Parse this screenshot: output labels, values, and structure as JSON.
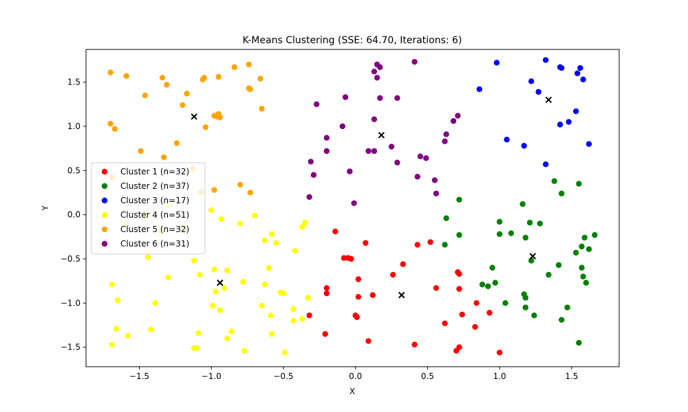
{
  "chart_data": {
    "type": "scatter",
    "title": "K-Means Clustering (SSE: 64.70, Iterations: 6)",
    "xlabel": "X",
    "ylabel": "Y",
    "xlim": [
      -1.87,
      1.83
    ],
    "ylim": [
      -1.72,
      1.87
    ],
    "xticks": [
      -1.5,
      -1.0,
      -0.5,
      0.0,
      0.5,
      1.0,
      1.5
    ],
    "yticks": [
      -1.5,
      -1.0,
      -0.5,
      0.0,
      0.5,
      1.0,
      1.5
    ],
    "tick_labels_x": [
      "−1.5",
      "−1.0",
      "−0.5",
      "0.0",
      "0.5",
      "1.0",
      "1.5"
    ],
    "tick_labels_y": [
      "−1.5",
      "−1.0",
      "−0.5",
      "0.0",
      "0.5",
      "1.0",
      "1.5"
    ],
    "grid": false,
    "legend_position": "center-left",
    "series": [
      {
        "name": "Cluster 1 (n=32)",
        "color": "#ff0000",
        "points": [
          [
            -0.14,
            -0.19
          ],
          [
            -0.08,
            -0.49
          ],
          [
            -0.05,
            -0.49
          ],
          [
            -0.03,
            -0.5
          ],
          [
            0.07,
            -0.32
          ],
          [
            0.0,
            -1.14
          ],
          [
            0.01,
            -1.16
          ],
          [
            0.02,
            -0.73
          ],
          [
            0.02,
            -0.93
          ],
          [
            0.12,
            -0.91
          ],
          [
            -0.2,
            -0.83
          ],
          [
            -0.2,
            -0.89
          ],
          [
            -0.21,
            -1.35
          ],
          [
            -0.32,
            -1.14
          ],
          [
            0.09,
            -1.43
          ],
          [
            0.26,
            -0.68
          ],
          [
            0.33,
            -0.56
          ],
          [
            0.43,
            -0.34
          ],
          [
            0.52,
            -0.31
          ],
          [
            0.41,
            -1.47
          ],
          [
            0.56,
            -0.83
          ],
          [
            0.62,
            -1.23
          ],
          [
            0.71,
            -0.65
          ],
          [
            0.72,
            -0.67
          ],
          [
            0.72,
            -0.84
          ],
          [
            0.74,
            -1.13
          ],
          [
            0.7,
            -1.54
          ],
          [
            0.72,
            -1.5
          ],
          [
            0.83,
            -1.27
          ],
          [
            0.84,
            -1.0
          ],
          [
            0.93,
            -1.11
          ],
          [
            1.0,
            -1.56
          ]
        ]
      },
      {
        "name": "Cluster 2 (n=37)",
        "color": "#008000",
        "points": [
          [
            0.63,
            -0.04
          ],
          [
            0.62,
            -0.34
          ],
          [
            0.72,
            0.17
          ],
          [
            0.72,
            -0.23
          ],
          [
            0.88,
            -0.79
          ],
          [
            0.92,
            -0.81
          ],
          [
            0.95,
            -0.6
          ],
          [
            0.97,
            -0.77
          ],
          [
            1.0,
            -0.08
          ],
          [
            1.0,
            -0.22
          ],
          [
            1.04,
            -1.0
          ],
          [
            1.08,
            -0.21
          ],
          [
            1.16,
            0.12
          ],
          [
            1.17,
            -0.9
          ],
          [
            1.18,
            -0.94
          ],
          [
            1.18,
            -0.26
          ],
          [
            1.18,
            -1.05
          ],
          [
            1.21,
            -0.09
          ],
          [
            1.22,
            -0.52
          ],
          [
            1.24,
            -1.14
          ],
          [
            1.28,
            -0.1
          ],
          [
            1.34,
            -0.68
          ],
          [
            1.38,
            0.38
          ],
          [
            1.41,
            -0.57
          ],
          [
            1.43,
            0.24
          ],
          [
            1.43,
            -1.19
          ],
          [
            1.47,
            -1.05
          ],
          [
            1.53,
            -0.43
          ],
          [
            1.55,
            0.35
          ],
          [
            1.57,
            -0.36
          ],
          [
            1.57,
            -0.6
          ],
          [
            1.58,
            -0.7
          ],
          [
            1.59,
            -0.26
          ],
          [
            1.6,
            -0.77
          ],
          [
            1.62,
            -0.39
          ],
          [
            1.66,
            -0.23
          ],
          [
            1.55,
            -1.45
          ]
        ]
      },
      {
        "name": "Cluster 3 (n=17)",
        "color": "#0000ff",
        "points": [
          [
            0.86,
            1.42
          ],
          [
            0.98,
            1.72
          ],
          [
            1.05,
            0.85
          ],
          [
            1.17,
            0.78
          ],
          [
            1.22,
            1.51
          ],
          [
            1.27,
            1.39
          ],
          [
            1.32,
            1.75
          ],
          [
            1.32,
            0.57
          ],
          [
            1.42,
            1.67
          ],
          [
            1.43,
            1.66
          ],
          [
            1.42,
            1.02
          ],
          [
            1.48,
            1.05
          ],
          [
            1.53,
            1.17
          ],
          [
            1.54,
            1.6
          ],
          [
            1.56,
            1.66
          ],
          [
            1.58,
            1.53
          ],
          [
            1.62,
            0.8
          ]
        ]
      },
      {
        "name": "Cluster 4 (n=51)",
        "color": "#ffff00",
        "points": [
          [
            -1.69,
            -0.79
          ],
          [
            -1.69,
            -1.47
          ],
          [
            -1.66,
            -1.29
          ],
          [
            -1.65,
            -0.97
          ],
          [
            -1.58,
            -1.37
          ],
          [
            -1.44,
            -0.48
          ],
          [
            -1.42,
            -1.3
          ],
          [
            -1.39,
            -1.0
          ],
          [
            -1.3,
            -0.71
          ],
          [
            -1.12,
            -0.52
          ],
          [
            -1.09,
            -1.34
          ],
          [
            -1.1,
            -1.51
          ],
          [
            -1.12,
            -1.51
          ],
          [
            -1.08,
            -0.68
          ],
          [
            -0.99,
            -1.03
          ],
          [
            -0.98,
            -0.62
          ],
          [
            -0.97,
            -0.87
          ],
          [
            -0.94,
            -1.08
          ],
          [
            -0.93,
            -0.05
          ],
          [
            -0.91,
            -0.83
          ],
          [
            -0.89,
            -0.63
          ],
          [
            -0.89,
            -1.4
          ],
          [
            -0.86,
            -1.32
          ],
          [
            -0.78,
            -0.76
          ],
          [
            -0.77,
            -1.54
          ],
          [
            -0.7,
            -0.01
          ],
          [
            -0.65,
            -1.03
          ],
          [
            -0.63,
            -0.29
          ],
          [
            -0.63,
            -0.79
          ],
          [
            -0.6,
            -0.6
          ],
          [
            -0.59,
            -1.14
          ],
          [
            -0.58,
            -0.22
          ],
          [
            -0.58,
            -1.35
          ],
          [
            -0.55,
            -0.32
          ],
          [
            -0.52,
            -0.88
          ],
          [
            -0.5,
            -0.89
          ],
          [
            -0.49,
            -1.56
          ],
          [
            -0.43,
            -1.07
          ],
          [
            -0.43,
            -1.2
          ],
          [
            -0.42,
            -0.41
          ],
          [
            -0.37,
            -0.14
          ],
          [
            -0.37,
            -1.18
          ],
          [
            -0.35,
            -0.09
          ],
          [
            -0.33,
            -0.94
          ],
          [
            -1.45,
            0.0
          ],
          [
            -1.6,
            -0.1
          ],
          [
            -1.3,
            0.1
          ],
          [
            -1.2,
            -0.15
          ],
          [
            -1.0,
            0.05
          ],
          [
            -0.8,
            -0.1
          ],
          [
            -1.35,
            -0.2
          ]
        ]
      },
      {
        "name": "Cluster 5 (n=32)",
        "color": "#ffa500",
        "points": [
          [
            -1.7,
            1.61
          ],
          [
            -1.59,
            1.57
          ],
          [
            -1.7,
            1.03
          ],
          [
            -1.67,
            0.97
          ],
          [
            -1.69,
            0.42
          ],
          [
            -1.49,
            0.72
          ],
          [
            -1.46,
            1.35
          ],
          [
            -1.34,
            1.55
          ],
          [
            -1.31,
            1.47
          ],
          [
            -1.33,
            0.65
          ],
          [
            -1.24,
            0.81
          ],
          [
            -1.2,
            1.24
          ],
          [
            -1.17,
            1.37
          ],
          [
            -1.13,
            0.52
          ],
          [
            -1.06,
            1.53
          ],
          [
            -1.05,
            1.55
          ],
          [
            -1.04,
            0.99
          ],
          [
            -0.98,
            1.12
          ],
          [
            -0.96,
            1.11
          ],
          [
            -0.95,
            1.56
          ],
          [
            -0.95,
            1.14
          ],
          [
            -0.94,
            1.1
          ],
          [
            -0.98,
            0.28
          ],
          [
            -1.07,
            0.25
          ],
          [
            -0.84,
            1.67
          ],
          [
            -0.8,
            0.34
          ],
          [
            -0.74,
            1.7
          ],
          [
            -0.74,
            1.43
          ],
          [
            -0.73,
            1.42
          ],
          [
            -0.73,
            0.25
          ],
          [
            -0.66,
            1.54
          ],
          [
            -0.65,
            1.2
          ]
        ]
      },
      {
        "name": "Cluster 6 (n=31)",
        "color": "#800080",
        "points": [
          [
            -0.32,
            0.2
          ],
          [
            -0.31,
            0.6
          ],
          [
            -0.29,
            0.45
          ],
          [
            -0.27,
            1.25
          ],
          [
            -0.2,
            0.87
          ],
          [
            -0.2,
            0.72
          ],
          [
            -0.09,
            1.0
          ],
          [
            -0.07,
            1.33
          ],
          [
            -0.04,
            0.49
          ],
          [
            -0.01,
            0.13
          ],
          [
            0.09,
            0.72
          ],
          [
            0.13,
            1.62
          ],
          [
            0.13,
            1.08
          ],
          [
            0.13,
            0.72
          ],
          [
            0.15,
            1.7
          ],
          [
            0.15,
            1.55
          ],
          [
            0.17,
            1.67
          ],
          [
            0.17,
            1.32
          ],
          [
            0.25,
            0.77
          ],
          [
            0.29,
            0.59
          ],
          [
            0.29,
            1.32
          ],
          [
            0.41,
            1.73
          ],
          [
            0.43,
            0.43
          ],
          [
            0.45,
            0.66
          ],
          [
            0.49,
            0.64
          ],
          [
            0.55,
            0.39
          ],
          [
            0.56,
            0.24
          ],
          [
            0.62,
            0.83
          ],
          [
            0.63,
            0.91
          ],
          [
            0.68,
            1.06
          ],
          [
            0.71,
            1.12
          ]
        ]
      }
    ],
    "centroids": [
      [
        0.32,
        -0.91
      ],
      [
        1.23,
        -0.47
      ],
      [
        1.34,
        1.3
      ],
      [
        -0.94,
        -0.77
      ],
      [
        -1.12,
        1.11
      ],
      [
        0.18,
        0.9
      ]
    ]
  }
}
